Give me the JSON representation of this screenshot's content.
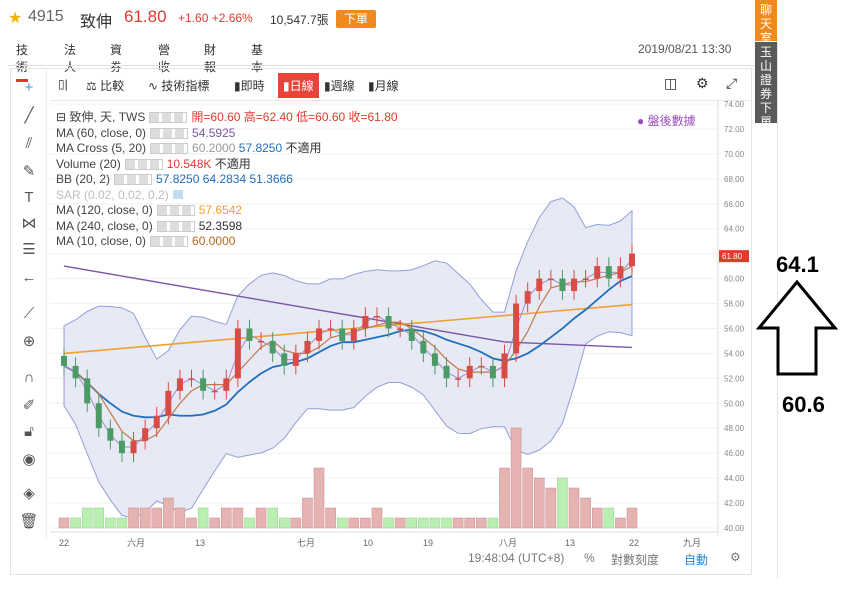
{
  "header": {
    "star_icon": "star-icon",
    "code": "4915",
    "name": "致伸",
    "price": "61.80",
    "change": "+1.60 +2.66%",
    "volume": "10,547.7張",
    "order_button": "下單"
  },
  "tabs": [
    "技術",
    "法人",
    "資券",
    "營收",
    "財報",
    "基本"
  ],
  "datetime": "2019/08/21 13:30",
  "side_buttons": [
    "聊天室",
    "玉山證券下單"
  ],
  "colors": {
    "up": "#e03b2d",
    "down": "#2e9e5b",
    "accent": "#f08a1e",
    "side_top": "#f08a1e",
    "side_bottom": "#5a5a5a"
  },
  "toolbar": {
    "compare": "比較",
    "indicators": "技術指標",
    "intraday": "即時",
    "daily": "日線",
    "weekly": "週線",
    "monthly": "月線"
  },
  "legend": {
    "ohlc_label": "致伸, 天, TWS",
    "ohlc_values": "開=60.60  高=62.40  低=60.60  收=61.80",
    "ma60": {
      "label": "MA (60, close, 0)",
      "value": "54.5925"
    },
    "macross": {
      "label": "MA Cross (5, 20)",
      "v1": "60.2000",
      "v2": "57.8250",
      "v3": "不適用"
    },
    "volume": {
      "label": "Volume (20)",
      "v1": "10.548K",
      "v2": "不適用"
    },
    "bb": {
      "label": "BB (20, 2)",
      "v1": "57.8250",
      "v2": "64.2834",
      "v3": "51.3666"
    },
    "sar": {
      "label": "SAR (0.02, 0.02, 0.2)"
    },
    "ma120": {
      "label": "MA (120, close, 0)",
      "value": "57.6542"
    },
    "ma240": {
      "label": "MA (240, close, 0)",
      "value": "52.3598"
    },
    "ma10": {
      "label": "MA (10, close, 0)",
      "value": "60.0000"
    }
  },
  "after_hours": "盤後數據",
  "price_axis": [
    "74.00",
    "72.00",
    "70.00",
    "68.00",
    "66.00",
    "64.00",
    "62.00",
    "61.80",
    "60.00",
    "58.00",
    "56.00",
    "54.00",
    "52.00",
    "50.00",
    "48.00",
    "46.00",
    "44.00",
    "42.00",
    "40.00"
  ],
  "time_axis": [
    "22",
    "六月",
    "13",
    "七月",
    "10",
    "19",
    "八月",
    "13",
    "22",
    "九月"
  ],
  "status": {
    "time": "19:48:04 (UTC+8)",
    "percent": "%",
    "log": "對數刻度",
    "auto": "自動"
  },
  "annotation": {
    "high": "64.1",
    "low": "60.6"
  },
  "chart_data": {
    "type": "line",
    "candles_close": [
      53,
      52,
      50,
      48,
      47,
      46,
      47,
      48,
      49,
      51,
      52,
      52,
      51,
      51,
      52,
      56,
      55,
      55,
      54,
      53,
      54,
      55,
      56,
      56,
      55,
      56,
      57,
      57,
      56,
      56,
      55,
      54,
      53,
      52,
      52,
      53,
      53,
      52,
      54,
      58,
      59,
      60,
      60,
      59,
      60,
      60,
      61,
      60,
      61,
      62
    ],
    "volume": [
      1,
      1,
      2,
      2,
      1,
      1,
      2,
      2,
      2,
      3,
      2,
      1,
      2,
      1,
      2,
      2,
      1,
      2,
      2,
      1,
      1,
      3,
      6,
      2,
      1,
      1,
      1,
      2,
      1,
      1,
      1,
      1,
      1,
      1,
      1,
      1,
      1,
      1,
      6,
      10,
      6,
      5,
      4,
      5,
      4,
      3,
      2,
      2,
      1,
      2
    ],
    "ylim": [
      40,
      74
    ]
  }
}
